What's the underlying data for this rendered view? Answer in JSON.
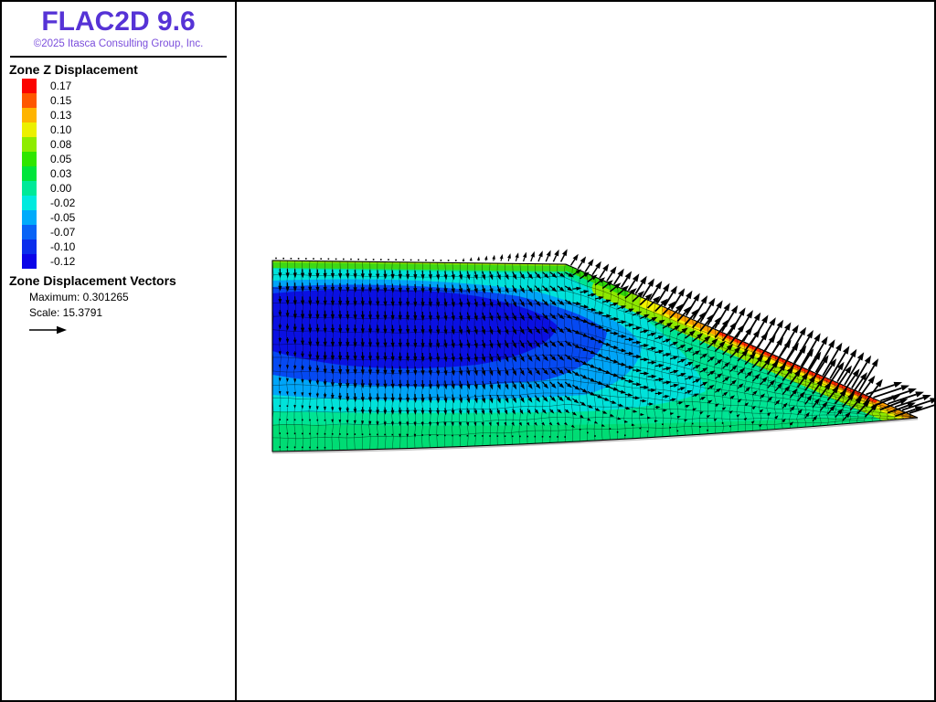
{
  "header": {
    "title": "FLAC2D 9.6",
    "copyright": "©2025 Itasca Consulting Group, Inc."
  },
  "legend": {
    "zone_title": "Zone Z Displacement",
    "entries": [
      {
        "value": "0.17",
        "color": "#fb0300"
      },
      {
        "value": "0.15",
        "color": "#ff5700"
      },
      {
        "value": "0.13",
        "color": "#ffb400"
      },
      {
        "value": "0.10",
        "color": "#ecf000"
      },
      {
        "value": "0.08",
        "color": "#8eec00"
      },
      {
        "value": "0.05",
        "color": "#2fe600"
      },
      {
        "value": "0.03",
        "color": "#00e53b"
      },
      {
        "value": "0.00",
        "color": "#00e998"
      },
      {
        "value": "-0.02",
        "color": "#00eadf"
      },
      {
        "value": "-0.05",
        "color": "#00abfb"
      },
      {
        "value": "-0.07",
        "color": "#0863f6"
      },
      {
        "value": "-0.10",
        "color": "#0a2eec"
      },
      {
        "value": "-0.12",
        "color": "#0b04e8"
      }
    ],
    "vectors_title": "Zone Displacement Vectors",
    "maximum_label": "Maximum: 0.301265",
    "scale_label": "Scale: 15.3791"
  },
  "chart_data": {
    "type": "heatmap",
    "title": "Zone Z Displacement",
    "legend_position": "left",
    "contour_levels": [
      0.17,
      0.15,
      0.13,
      0.1,
      0.08,
      0.05,
      0.03,
      0.0,
      -0.02,
      -0.05,
      -0.07,
      -0.1,
      -0.12
    ],
    "contour_colors": [
      "#fb0300",
      "#ff5700",
      "#ffb400",
      "#ecf000",
      "#8eec00",
      "#2fe600",
      "#00e53b",
      "#00e998",
      "#00eadf",
      "#00abfb",
      "#0863f6",
      "#0a2eec",
      "#0b04e8"
    ],
    "overlay_vectors": {
      "label": "Zone Displacement Vectors",
      "maximum": 0.301265,
      "scale": 15.3791
    },
    "features": {
      "settlement_zone_min": -0.12,
      "heave_band_max": 0.17,
      "mesh": "deformed quadrilateral grid, embankment cross-section with slope on right",
      "vector_pattern": "small downward vectors in interior settlement zone, large outward up-slope vectors along slope face"
    }
  }
}
